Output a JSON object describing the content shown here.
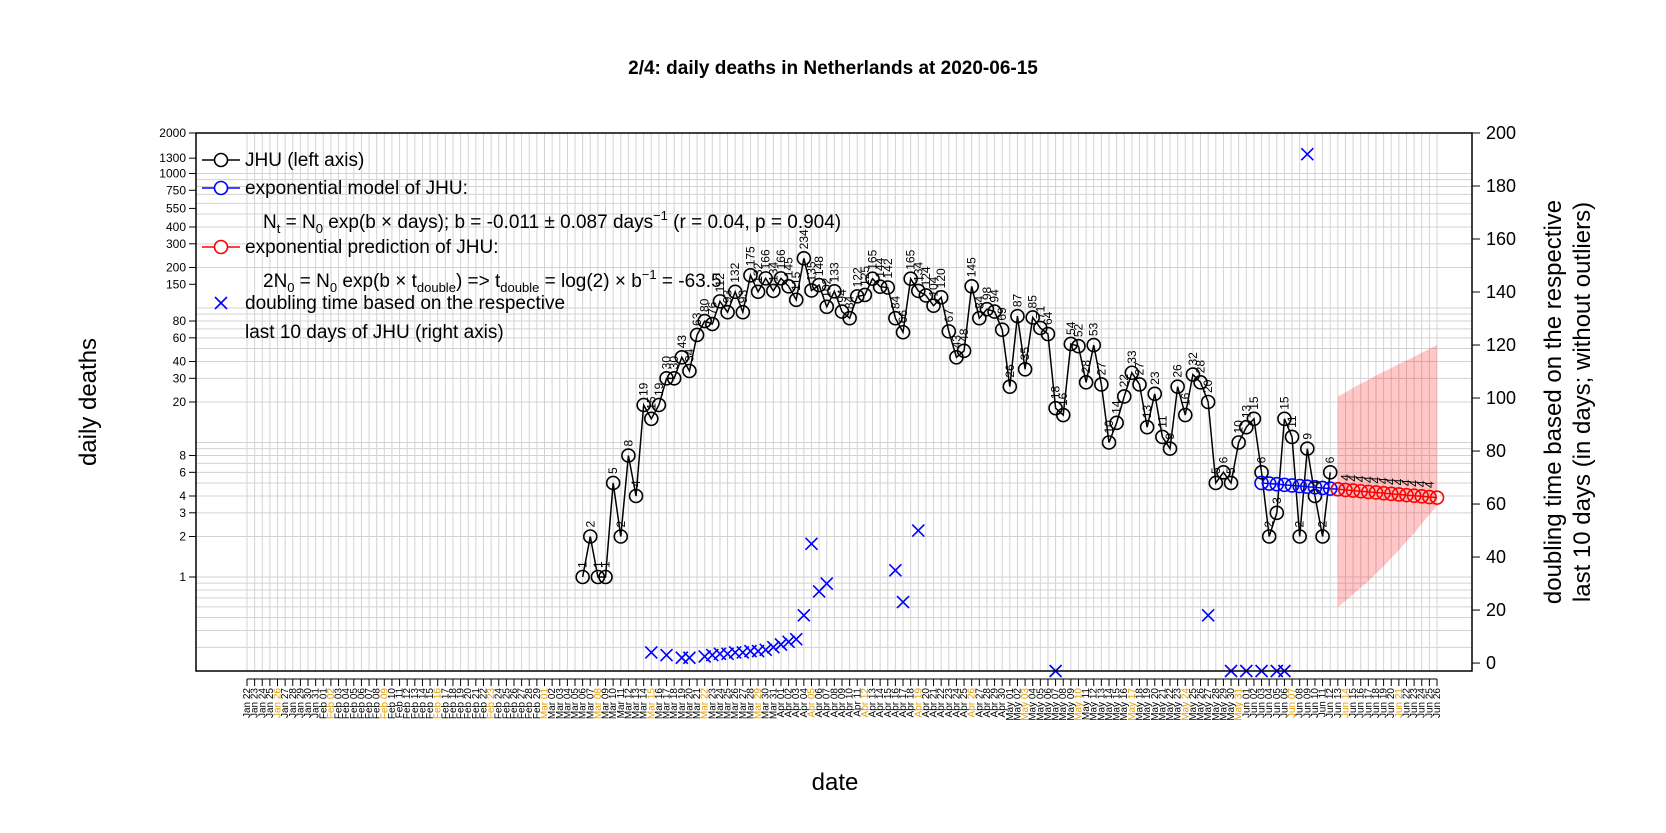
{
  "chart_data": {
    "type": "line",
    "title": "2/4: daily deaths in Netherlands at 2020-06-15",
    "xlabel": "date",
    "ylabel": "daily deaths",
    "ylabel_right": [
      "doubling time based on the respective",
      "last 10 days (in days; without outliers)"
    ],
    "y_scale": "log",
    "ylim": [
      0.2,
      2000
    ],
    "y_ticks": [
      1,
      2,
      3,
      4,
      6,
      8,
      20,
      30,
      40,
      60,
      80,
      150,
      200,
      300,
      400,
      550,
      750,
      1000,
      1300,
      2000
    ],
    "y2lim": [
      -3,
      200
    ],
    "y2_ticks": [
      0,
      20,
      40,
      60,
      80,
      100,
      120,
      140,
      160,
      180,
      200
    ],
    "x_range": [
      "2020-01-22",
      "2020-06-26"
    ],
    "x_tick_labels": [
      "Jan 22",
      "Jan 23",
      "Jan 24",
      "Jan 25",
      "Jan 26",
      "Jan 27",
      "Jan 28",
      "Jan 29",
      "Jan 30",
      "Jan 31",
      "Feb 01",
      "Feb 02",
      "Feb 03",
      "Feb 04",
      "Feb 05",
      "Feb 06",
      "Feb 07",
      "Feb 08",
      "Feb 09",
      "Feb 10",
      "Feb 11",
      "Feb 12",
      "Feb 13",
      "Feb 14",
      "Feb 15",
      "Feb 16",
      "Feb 17",
      "Feb 18",
      "Feb 19",
      "Feb 20",
      "Feb 21",
      "Feb 22",
      "Feb 23",
      "Feb 24",
      "Feb 25",
      "Feb 26",
      "Feb 27",
      "Feb 28",
      "Feb 29",
      "Mar 01",
      "Mar 02",
      "Mar 03",
      "Mar 04",
      "Mar 05",
      "Mar 06",
      "Mar 07",
      "Mar 08",
      "Mar 09",
      "Mar 10",
      "Mar 11",
      "Mar 12",
      "Mar 13",
      "Mar 14",
      "Mar 15",
      "Mar 16",
      "Mar 17",
      "Mar 18",
      "Mar 19",
      "Mar 20",
      "Mar 21",
      "Mar 22",
      "Mar 23",
      "Mar 24",
      "Mar 25",
      "Mar 26",
      "Mar 27",
      "Mar 28",
      "Mar 29",
      "Mar 30",
      "Mar 31",
      "Apr 01",
      "Apr 02",
      "Apr 03",
      "Apr 04",
      "Apr 05",
      "Apr 06",
      "Apr 07",
      "Apr 08",
      "Apr 09",
      "Apr 10",
      "Apr 11",
      "Apr 12",
      "Apr 13",
      "Apr 14",
      "Apr 15",
      "Apr 16",
      "Apr 17",
      "Apr 18",
      "Apr 19",
      "Apr 20",
      "Apr 21",
      "Apr 22",
      "Apr 23",
      "Apr 24",
      "Apr 25",
      "Apr 26",
      "Apr 27",
      "Apr 28",
      "Apr 29",
      "Apr 30",
      "May 01",
      "May 02",
      "May 03",
      "May 04",
      "May 05",
      "May 06",
      "May 07",
      "May 08",
      "May 09",
      "May 10",
      "May 11",
      "May 12",
      "May 13",
      "May 14",
      "May 15",
      "May 16",
      "May 17",
      "May 18",
      "May 19",
      "May 20",
      "May 21",
      "May 22",
      "May 23",
      "May 24",
      "May 25",
      "May 26",
      "May 27",
      "May 28",
      "May 29",
      "May 30",
      "May 31",
      "Jun 01",
      "Jun 02",
      "Jun 03",
      "Jun 04",
      "Jun 05",
      "Jun 06",
      "Jun 07",
      "Jun 08",
      "Jun 09",
      "Jun 10",
      "Jun 11",
      "Jun 12",
      "Jun 13",
      "Jun 14",
      "Jun 15",
      "Jun 16",
      "Jun 17",
      "Jun 18",
      "Jun 19",
      "Jun 20",
      "Jun 21",
      "Jun 22",
      "Jun 23",
      "Jun 24",
      "Jun 25",
      "Jun 26"
    ],
    "grid": true,
    "legend_position": "top-left",
    "legend": [
      {
        "label": "JHU (left axis)",
        "color": "#000000",
        "symbol": "line-circle"
      },
      {
        "label": "exponential model of JHU:",
        "color": "#0000ff",
        "symbol": "line-circle"
      },
      {
        "label": "exponential prediction of JHU:",
        "color": "#ff0000",
        "symbol": "line-circle"
      },
      {
        "label": "doubling time based on the respective",
        "color": "#0000ff",
        "symbol": "cross"
      },
      {
        "label": "last 10 days of JHU (right axis)",
        "color": "",
        "symbol": "none"
      }
    ],
    "legend_formula_1": "N_t = N_0 exp(b × days); b = -0.011 ± 0.087 days^-1 (r = 0.04, p = 0.904)",
    "legend_formula_2": "2N_0 = N_0 exp(b × t_double) => t_double = log(2) × b^-1 = -63.5",
    "series": [
      {
        "name": "JHU (left axis)",
        "color": "#000000",
        "points": [
          [
            "2020-03-06",
            1
          ],
          [
            "2020-03-07",
            2
          ],
          [
            "2020-03-08",
            1
          ],
          [
            "2020-03-09",
            1
          ],
          [
            "2020-03-10",
            5
          ],
          [
            "2020-03-11",
            2
          ],
          [
            "2020-03-12",
            8
          ],
          [
            "2020-03-13",
            4
          ],
          [
            "2020-03-14",
            19
          ],
          [
            "2020-03-15",
            15
          ],
          [
            "2020-03-16",
            19
          ],
          [
            "2020-03-17",
            30
          ],
          [
            "2020-03-18",
            30
          ],
          [
            "2020-03-19",
            43
          ],
          [
            "2020-03-20",
            34
          ],
          [
            "2020-03-21",
            63
          ],
          [
            "2020-03-22",
            80
          ],
          [
            "2020-03-23",
            76
          ],
          [
            "2020-03-24",
            112
          ],
          [
            "2020-03-25",
            93
          ],
          [
            "2020-03-26",
            132
          ],
          [
            "2020-03-27",
            93
          ],
          [
            "2020-03-28",
            175
          ],
          [
            "2020-03-29",
            132
          ],
          [
            "2020-03-30",
            166
          ],
          [
            "2020-03-31",
            134
          ],
          [
            "2020-04-01",
            166
          ],
          [
            "2020-04-02",
            145
          ],
          [
            "2020-04-03",
            115
          ],
          [
            "2020-04-04",
            234
          ],
          [
            "2020-04-05",
            135
          ],
          [
            "2020-04-06",
            148
          ],
          [
            "2020-04-07",
            102
          ],
          [
            "2020-04-08",
            133
          ],
          [
            "2020-04-09",
            94
          ],
          [
            "2020-04-10",
            84
          ],
          [
            "2020-04-11",
            122
          ],
          [
            "2020-04-12",
            125
          ],
          [
            "2020-04-13",
            165
          ],
          [
            "2020-04-14",
            144
          ],
          [
            "2020-04-15",
            142
          ],
          [
            "2020-04-16",
            84
          ],
          [
            "2020-04-17",
            66
          ],
          [
            "2020-04-18",
            165
          ],
          [
            "2020-04-19",
            134
          ],
          [
            "2020-04-20",
            124
          ],
          [
            "2020-04-21",
            104
          ],
          [
            "2020-04-22",
            120
          ],
          [
            "2020-04-23",
            67
          ],
          [
            "2020-04-24",
            43
          ],
          [
            "2020-04-25",
            48
          ],
          [
            "2020-04-26",
            145
          ],
          [
            "2020-04-27",
            84
          ],
          [
            "2020-04-28",
            98
          ],
          [
            "2020-04-29",
            94
          ],
          [
            "2020-04-30",
            69
          ],
          [
            "2020-05-01",
            26
          ],
          [
            "2020-05-02",
            87
          ],
          [
            "2020-05-03",
            35
          ],
          [
            "2020-05-04",
            85
          ],
          [
            "2020-05-05",
            71
          ],
          [
            "2020-05-06",
            64
          ],
          [
            "2020-05-07",
            18
          ],
          [
            "2020-05-08",
            16
          ],
          [
            "2020-05-09",
            54
          ],
          [
            "2020-05-10",
            52
          ],
          [
            "2020-05-11",
            28
          ],
          [
            "2020-05-12",
            53
          ],
          [
            "2020-05-13",
            27
          ],
          [
            "2020-05-14",
            10
          ],
          [
            "2020-05-15",
            14
          ],
          [
            "2020-05-16",
            22
          ],
          [
            "2020-05-17",
            33
          ],
          [
            "2020-05-18",
            27
          ],
          [
            "2020-05-19",
            13
          ],
          [
            "2020-05-20",
            23
          ],
          [
            "2020-05-21",
            11
          ],
          [
            "2020-05-22",
            9
          ],
          [
            "2020-05-23",
            26
          ],
          [
            "2020-05-24",
            16
          ],
          [
            "2020-05-25",
            32
          ],
          [
            "2020-05-26",
            28
          ],
          [
            "2020-05-27",
            20
          ],
          [
            "2020-05-28",
            5
          ],
          [
            "2020-05-29",
            6
          ],
          [
            "2020-05-30",
            5
          ],
          [
            "2020-05-31",
            10
          ],
          [
            "2020-06-01",
            13
          ],
          [
            "2020-06-02",
            15
          ],
          [
            "2020-06-03",
            6
          ],
          [
            "2020-06-04",
            2
          ],
          [
            "2020-06-05",
            3
          ],
          [
            "2020-06-06",
            15
          ],
          [
            "2020-06-07",
            11
          ],
          [
            "2020-06-08",
            2
          ],
          [
            "2020-06-09",
            9
          ],
          [
            "2020-06-10",
            4
          ],
          [
            "2020-06-11",
            2
          ],
          [
            "2020-06-12",
            6
          ]
        ]
      },
      {
        "name": "exponential model of JHU",
        "color": "#0000ff",
        "points": [
          [
            "2020-06-03",
            5.0
          ],
          [
            "2020-06-04",
            4.95
          ],
          [
            "2020-06-05",
            4.9
          ],
          [
            "2020-06-06",
            4.84
          ],
          [
            "2020-06-07",
            4.79
          ],
          [
            "2020-06-08",
            4.74
          ],
          [
            "2020-06-09",
            4.69
          ],
          [
            "2020-06-10",
            4.64
          ],
          [
            "2020-06-11",
            4.59
          ],
          [
            "2020-06-12",
            4.54
          ],
          [
            "2020-06-13",
            4.49
          ]
        ]
      },
      {
        "name": "exponential prediction of JHU",
        "color": "#ff0000",
        "labels": [
          "4",
          "4",
          "4",
          "4",
          "4",
          "4",
          "4",
          "4",
          "4",
          "4",
          "4",
          "4"
        ],
        "points": [
          [
            "2020-06-13",
            4.49
          ],
          [
            "2020-06-14",
            4.44
          ],
          [
            "2020-06-15",
            4.39
          ],
          [
            "2020-06-16",
            4.34
          ],
          [
            "2020-06-17",
            4.29
          ],
          [
            "2020-06-18",
            4.25
          ],
          [
            "2020-06-19",
            4.2
          ],
          [
            "2020-06-20",
            4.15
          ],
          [
            "2020-06-21",
            4.11
          ],
          [
            "2020-06-22",
            4.06
          ],
          [
            "2020-06-23",
            4.02
          ],
          [
            "2020-06-24",
            3.98
          ],
          [
            "2020-06-25",
            3.93
          ],
          [
            "2020-06-26",
            3.89
          ]
        ],
        "band_low": [
          7.5,
          6.7,
          5.9,
          5.2,
          4.6,
          4.0,
          3.5,
          3.0,
          2.6,
          2.2,
          1.9,
          1.6,
          1.35,
          1.15
        ],
        "band_high": [
          4.9,
          5.3,
          5.8,
          6.3,
          6.8,
          7.4,
          8.0,
          8.6,
          9.3,
          10.0,
          10.8,
          11.7,
          12.6,
          13.6
        ]
      },
      {
        "name": "doubling time based on the respective last 10 days of JHU (right axis)",
        "color": "#0000ff",
        "axis": "right",
        "points": [
          [
            "2020-03-15",
            4
          ],
          [
            "2020-03-17",
            3
          ],
          [
            "2020-03-19",
            2
          ],
          [
            "2020-03-20",
            2
          ],
          [
            "2020-03-22",
            2.5
          ],
          [
            "2020-03-23",
            3
          ],
          [
            "2020-03-24",
            3.5
          ],
          [
            "2020-03-25",
            3.5
          ],
          [
            "2020-03-26",
            4
          ],
          [
            "2020-03-27",
            4
          ],
          [
            "2020-03-28",
            4.5
          ],
          [
            "2020-03-29",
            4.5
          ],
          [
            "2020-03-30",
            5
          ],
          [
            "2020-03-31",
            6
          ],
          [
            "2020-04-01",
            7
          ],
          [
            "2020-04-02",
            8
          ],
          [
            "2020-04-03",
            9
          ],
          [
            "2020-04-04",
            18
          ],
          [
            "2020-04-05",
            45
          ],
          [
            "2020-04-06",
            27
          ],
          [
            "2020-04-07",
            30
          ],
          [
            "2020-04-16",
            35
          ],
          [
            "2020-04-17",
            23
          ],
          [
            "2020-04-19",
            50
          ],
          [
            "2020-05-07",
            -5
          ],
          [
            "2020-05-27",
            18
          ],
          [
            "2020-05-30",
            -5
          ],
          [
            "2020-06-01",
            -4
          ],
          [
            "2020-06-03",
            -5
          ],
          [
            "2020-06-05",
            -4
          ],
          [
            "2020-06-06",
            -5
          ],
          [
            "2020-06-09",
            192
          ]
        ]
      }
    ]
  }
}
